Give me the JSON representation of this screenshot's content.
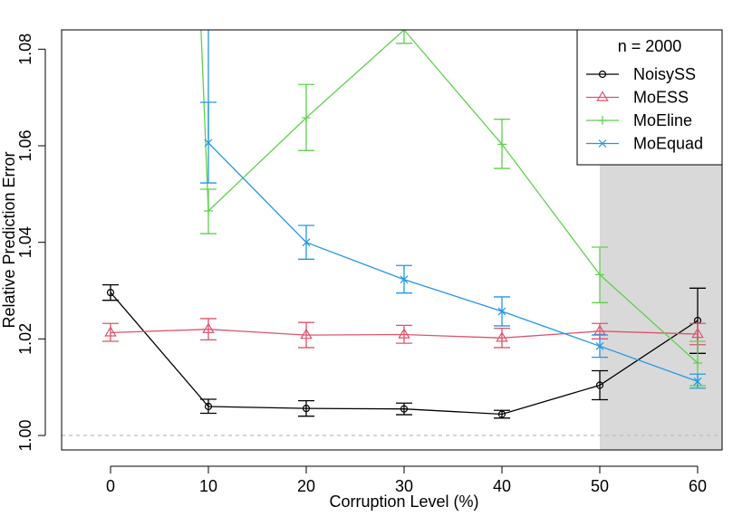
{
  "chart_data": {
    "type": "line",
    "xlabel": "Corruption Level (%)",
    "ylabel": "Relative Prediction Error",
    "xlim": [
      -5,
      62.5
    ],
    "ylim": [
      0.997,
      1.084
    ],
    "x_ticks": [
      0,
      10,
      20,
      30,
      40,
      50,
      60
    ],
    "x_tick_labels": [
      "0",
      "10",
      "20",
      "30",
      "40",
      "50",
      "60"
    ],
    "y_ticks": [
      1.0,
      1.02,
      1.04,
      1.06,
      1.08
    ],
    "y_tick_labels": [
      "1.00",
      "1.02",
      "1.04",
      "1.06",
      "1.08"
    ],
    "reference_line": 1.0,
    "shaded_region": {
      "x_from": 50,
      "x_to": 62.5,
      "color": "#d9d9d9"
    },
    "legend_title": "n = 2000",
    "legend_position": "top-right",
    "series": [
      {
        "name": "NoisySS",
        "color": "#000000",
        "marker": "circle",
        "x": [
          0,
          10,
          20,
          30,
          40,
          50,
          60
        ],
        "y": [
          1.0296,
          1.006,
          1.0056,
          1.0055,
          1.0044,
          1.0104,
          1.0238
        ],
        "err_low": [
          1.028,
          1.0046,
          1.004,
          1.0043,
          1.0036,
          1.0074,
          1.017
        ],
        "err_high": [
          1.0312,
          1.0075,
          1.0072,
          1.0067,
          1.0052,
          1.0134,
          1.0305
        ]
      },
      {
        "name": "MoESS",
        "color": "#DF536B",
        "marker": "triangle",
        "x": [
          0,
          10,
          20,
          30,
          40,
          50,
          60
        ],
        "y": [
          1.0213,
          1.022,
          1.0208,
          1.0209,
          1.0202,
          1.0216,
          1.021
        ],
        "err_low": [
          1.0195,
          1.0198,
          1.0182,
          1.0191,
          1.0182,
          1.02,
          1.0188
        ],
        "err_high": [
          1.0232,
          1.0242,
          1.0234,
          1.0228,
          1.0222,
          1.0232,
          1.0232
        ]
      },
      {
        "name": "MoEline",
        "color": "#61D04F",
        "marker": "plus",
        "x": [
          9.2,
          10,
          20,
          30,
          40,
          50,
          60
        ],
        "y": [
          1.086,
          1.0465,
          1.0658,
          1.084,
          1.0603,
          1.0333,
          1.015
        ],
        "err_low": [
          null,
          1.0418,
          1.059,
          1.0812,
          1.0553,
          1.0275,
          1.0103
        ],
        "err_high": [
          null,
          1.051,
          1.0727,
          1.087,
          1.0655,
          1.039,
          1.0195
        ]
      },
      {
        "name": "MoEquad",
        "color": "#2297E6",
        "marker": "cross",
        "x": [
          10,
          10,
          20,
          30,
          40,
          50,
          60
        ],
        "y": [
          1.086,
          1.0606,
          1.04,
          1.0323,
          1.0257,
          1.0185,
          1.0112
        ],
        "err_low": [
          null,
          1.0523,
          1.0365,
          1.0295,
          1.0227,
          1.0162,
          1.0098
        ],
        "err_high": [
          null,
          1.069,
          1.0435,
          1.0352,
          1.0287,
          1.0208,
          1.0127
        ]
      }
    ]
  }
}
